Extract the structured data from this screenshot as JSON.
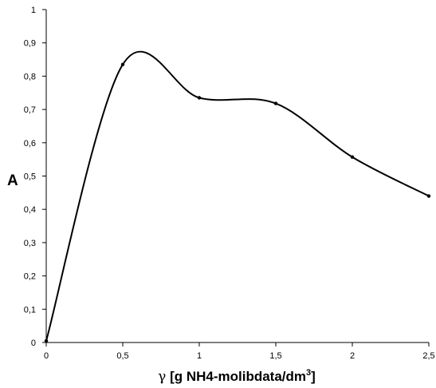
{
  "chart_data": {
    "type": "line",
    "smooth": true,
    "grid": false,
    "legend": "none",
    "ylabel": "A",
    "xlabel": {
      "symbol": "γ",
      "text": " [g NH4-molibdata/dm",
      "superscript": "3",
      "close": "]"
    },
    "xlim": [
      0,
      2.5
    ],
    "ylim": [
      0,
      1
    ],
    "x_ticks": [
      "0",
      "0,5",
      "1",
      "1,5",
      "2",
      "2,5"
    ],
    "y_ticks": [
      "0",
      "0,1",
      "0,2",
      "0,3",
      "0,4",
      "0,5",
      "0,6",
      "0,7",
      "0,8",
      "0,9",
      "1"
    ],
    "series": [
      {
        "x": [
          0,
          0.5,
          1,
          1.5,
          2,
          2.5
        ],
        "y": [
          0.005,
          0.835,
          0.735,
          0.718,
          0.557,
          0.44
        ],
        "color": "#000000"
      }
    ]
  }
}
